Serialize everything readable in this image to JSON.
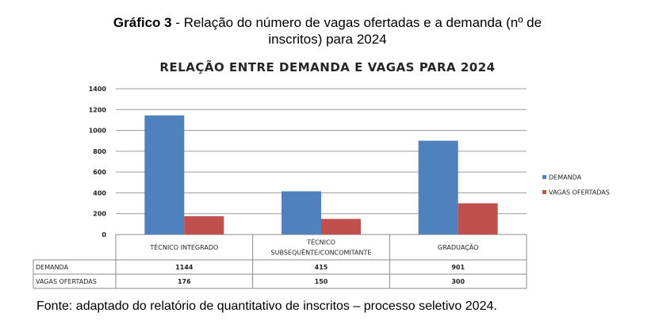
{
  "caption": {
    "label": "Gráfico 3",
    "line1_rest": " - Relação do número de vagas ofertadas e a demanda (nº de",
    "line2": "inscritos) para 2024"
  },
  "source": "Fonte: adaptado do relatório de quantitativo de inscritos – processo seletivo 2024.",
  "colors": {
    "demanda": "#4f81bd",
    "vagas": "#c0504d"
  },
  "chart_data": {
    "type": "bar",
    "title": "RELAÇÃO ENTRE DEMANDA E VAGAS PARA 2024",
    "categories": [
      [
        "TÉCNICO INTEGRADO"
      ],
      [
        "TÉCNICO",
        "SUBSEQUÊNTE/CONCOMITANTE"
      ],
      [
        "GRADUAÇÃO"
      ]
    ],
    "series": [
      {
        "name": "DEMANDA",
        "values": [
          1144,
          415,
          901
        ]
      },
      {
        "name": "VAGAS OFERTADAS",
        "values": [
          176,
          150,
          300
        ]
      }
    ],
    "ylim": [
      0,
      1400
    ],
    "yticks": [
      0,
      200,
      400,
      600,
      800,
      1000,
      1200,
      1400
    ],
    "grid": true,
    "legend": "right",
    "data_table": true
  }
}
